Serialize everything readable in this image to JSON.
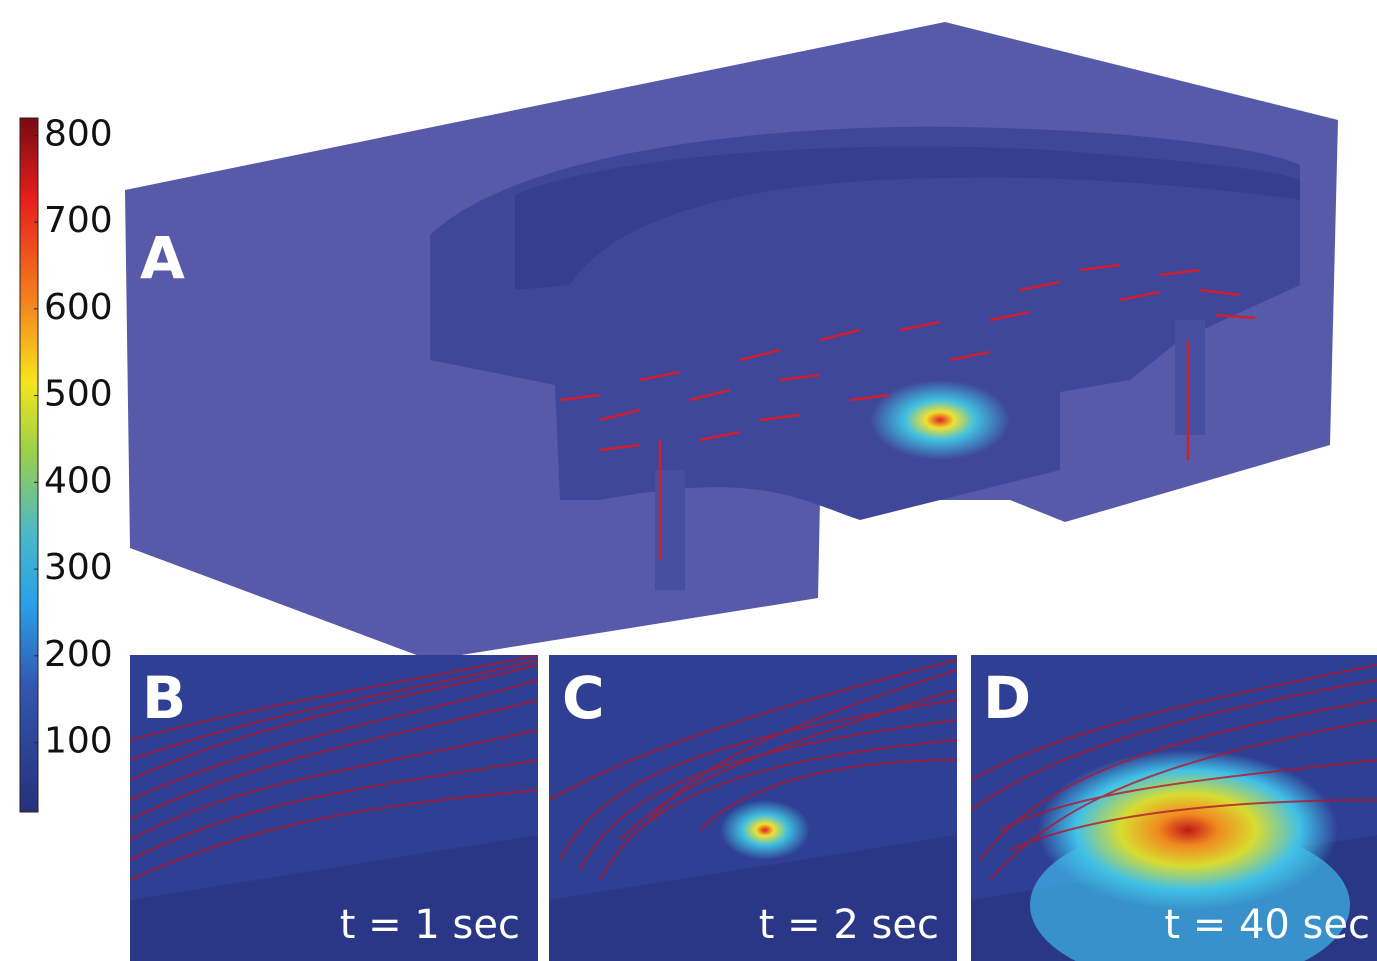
{
  "colorbar": {
    "lim": [
      20,
      820
    ],
    "ticks": [
      100,
      200,
      300,
      400,
      500,
      600,
      700,
      800
    ]
  },
  "panels": [
    {
      "label": "A"
    },
    {
      "label": "B",
      "caption": "t = 1 sec"
    },
    {
      "label": "C",
      "caption": "t = 2 sec"
    },
    {
      "label": "D",
      "caption": "t = 40 sec"
    }
  ]
}
